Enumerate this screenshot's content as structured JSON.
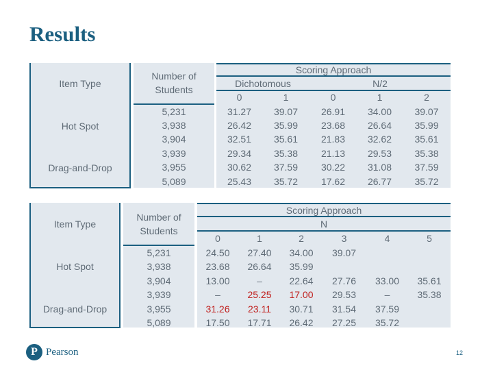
{
  "title": "Results",
  "table1": {
    "item_type_header": "Item Type",
    "num_students_header": "Number of Students",
    "scoring_header": "Scoring Approach",
    "dichotomous": "Dichotomous",
    "n2": "N/2",
    "score_cols": [
      "0",
      "1",
      "0",
      "1",
      "2"
    ],
    "item_types": [
      "Hot Spot",
      "Drag-and-Drop"
    ],
    "rows": [
      {
        "n": "5,231",
        "v": [
          "31.27",
          "39.07",
          "26.91",
          "34.00",
          "39.07"
        ]
      },
      {
        "n": "3,938",
        "v": [
          "26.42",
          "35.99",
          "23.68",
          "26.64",
          "35.99"
        ]
      },
      {
        "n": "3,904",
        "v": [
          "32.51",
          "35.61",
          "21.83",
          "32.62",
          "35.61"
        ]
      },
      {
        "n": "3,939",
        "v": [
          "29.34",
          "35.38",
          "21.13",
          "29.53",
          "35.38"
        ]
      },
      {
        "n": "3,955",
        "v": [
          "30.62",
          "37.59",
          "30.22",
          "31.08",
          "37.59"
        ]
      },
      {
        "n": "5,089",
        "v": [
          "25.43",
          "35.72",
          "17.62",
          "26.77",
          "35.72"
        ]
      }
    ]
  },
  "table2": {
    "item_type_header": "Item Type",
    "num_students_header": "Number of Students",
    "scoring_header": "Scoring Approach",
    "n_label": "N",
    "score_cols": [
      "0",
      "1",
      "2",
      "3",
      "4",
      "5"
    ],
    "item_types": [
      "Hot Spot",
      "Drag-and-Drop"
    ],
    "rows": [
      {
        "n": "5,231",
        "v": [
          "24.50",
          "27.40",
          "34.00",
          "39.07",
          "",
          ""
        ]
      },
      {
        "n": "3,938",
        "v": [
          "23.68",
          "26.64",
          "35.99",
          "",
          "",
          ""
        ]
      },
      {
        "n": "3,904",
        "v": [
          "13.00",
          "–",
          "22.64",
          "27.76",
          "33.00",
          "35.61"
        ]
      },
      {
        "n": "3,939",
        "v": [
          "–",
          "25.25",
          "17.00",
          "29.53",
          "–",
          "35.38"
        ]
      },
      {
        "n": "3,955",
        "v": [
          "31.26",
          "23.11",
          "30.71",
          "31.54",
          "37.59",
          ""
        ]
      },
      {
        "n": "5,089",
        "v": [
          "17.50",
          "17.71",
          "26.42",
          "27.25",
          "35.72",
          ""
        ]
      }
    ],
    "red_cells": [
      [
        4,
        0
      ],
      [
        4,
        1
      ],
      [
        3,
        1
      ],
      [
        3,
        2
      ]
    ]
  },
  "footer": {
    "logo_letter": "P",
    "logo_text": "Pearson",
    "page": "12"
  },
  "colors": {
    "accent": "#1b5f80",
    "cell_bg": "#e2e8ee",
    "text": "#5f6b76",
    "red": "#c0201e"
  }
}
